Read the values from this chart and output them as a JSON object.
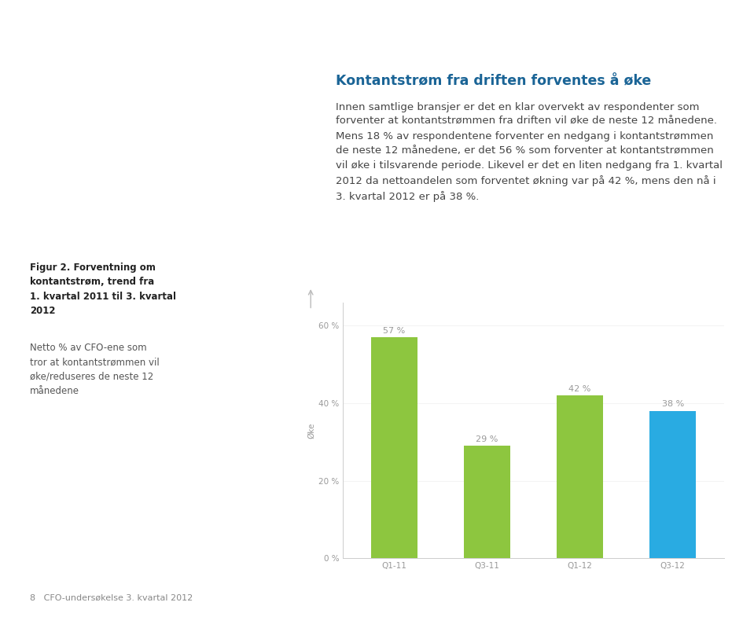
{
  "categories": [
    "Q1-11",
    "Q3-11",
    "Q1-12",
    "Q3-12"
  ],
  "values": [
    57,
    29,
    42,
    38
  ],
  "bar_colors": [
    "#8dc63f",
    "#8dc63f",
    "#8dc63f",
    "#29abe2"
  ],
  "ylabel": "Øke",
  "yticks": [
    0,
    20,
    40,
    60
  ],
  "ytick_labels": [
    "0 %",
    "20 %",
    "40 %",
    "60 %"
  ],
  "ylim": [
    0,
    66
  ],
  "xlim": [
    -0.55,
    3.55
  ],
  "value_labels": [
    "57 %",
    "29 %",
    "42 %",
    "38 %"
  ],
  "background_color": "#ffffff",
  "bar_width": 0.5,
  "label_fontsize": 8,
  "tick_fontsize": 7.5,
  "ylabel_fontsize": 7.5,
  "value_color": "#999999",
  "tick_color": "#999999",
  "axis_color": "#cccccc",
  "title": "Kontantstrøm fra driften forventes å øke",
  "title_color": "#1a6496",
  "body_text": "Innen samtlige bransjer er det en klar overvekt av respondenter som\nforventer at kontantstrømmen fra driften vil øke de neste 12 månedene.\nMens 18 % av respondentene forventer en nedgang i kontantstrømmen\nde neste 12 månedene, er det 56 % som forventer at kontantstrømmen\nvil øke i tilsvarende periode. Likevel er det en liten nedgang fra 1. kvartal\n2012 da nettoandelen som forventet økning var på 42 %, mens den nå i\n3. kvartal 2012 er på 38 %.",
  "body_color": "#444444",
  "caption_bold": "Figur 2. Forventning om\nkontantstrøm, trend fra\n1. kvartal 2011 til 3. kvartal\n2012",
  "caption_normal": "Netto % av CFO-ene som\ntror at kontantstrømmen vil\nøke/reduseres de neste 12\nmånedene",
  "footer_text": "8   CFO-undersøkelse 3. kvartal 2012",
  "footer_color": "#888888"
}
